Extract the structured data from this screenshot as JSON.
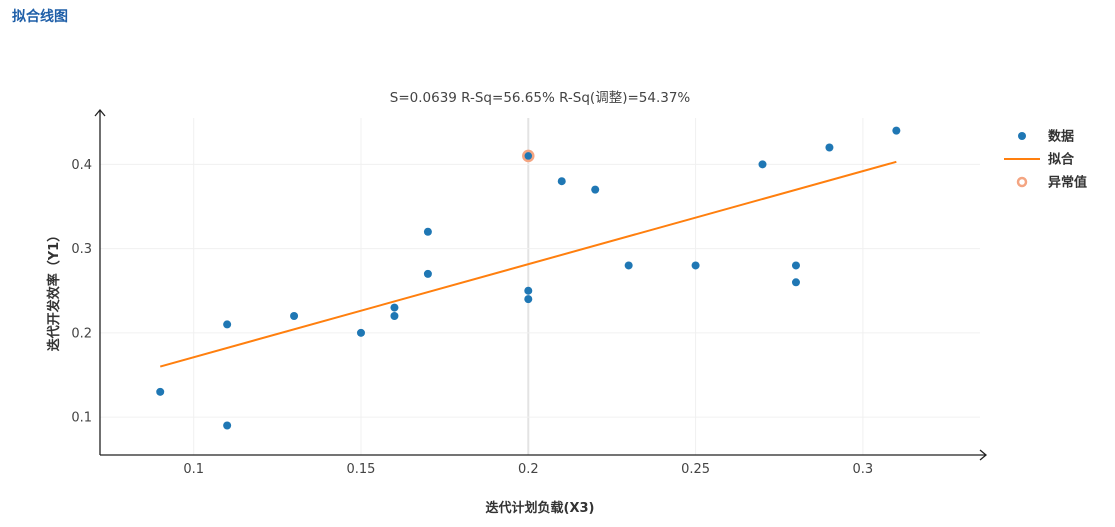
{
  "page": {
    "title": "拟合线图"
  },
  "chart_data": {
    "type": "scatter",
    "stats": "S=0.0639    R-Sq=56.65%    R-Sq(调整)=54.37%",
    "xlabel": "迭代计划负载(X3)",
    "ylabel": "迭代开发效率（Y1）",
    "xlim": [
      0.072,
      0.335
    ],
    "ylim": [
      0.055,
      0.455
    ],
    "x_ticks": [
      0.1,
      0.15,
      0.2,
      0.25,
      0.3
    ],
    "x_tick_labels": [
      "0.1",
      "0.15",
      "0.2",
      "0.25",
      "0.3"
    ],
    "y_ticks": [
      0.1,
      0.2,
      0.3,
      0.4
    ],
    "y_tick_labels": [
      "0.1",
      "0.2",
      "0.3",
      "0.4"
    ],
    "grid": true,
    "legend_position": "right",
    "series": [
      {
        "name": "数据",
        "type": "scatter",
        "color": "#1f77b4",
        "points": [
          [
            0.09,
            0.13
          ],
          [
            0.11,
            0.21
          ],
          [
            0.11,
            0.09
          ],
          [
            0.13,
            0.22
          ],
          [
            0.15,
            0.2
          ],
          [
            0.16,
            0.23
          ],
          [
            0.16,
            0.22
          ],
          [
            0.17,
            0.32
          ],
          [
            0.17,
            0.27
          ],
          [
            0.2,
            0.25
          ],
          [
            0.2,
            0.24
          ],
          [
            0.21,
            0.38
          ],
          [
            0.22,
            0.37
          ],
          [
            0.23,
            0.28
          ],
          [
            0.25,
            0.28
          ],
          [
            0.27,
            0.4
          ],
          [
            0.28,
            0.28
          ],
          [
            0.28,
            0.26
          ],
          [
            0.29,
            0.42
          ],
          [
            0.31,
            0.44
          ]
        ]
      },
      {
        "name": "拟合",
        "type": "line",
        "color": "#ff7f0e",
        "points": [
          [
            0.09,
            0.16
          ],
          [
            0.31,
            0.403
          ]
        ]
      },
      {
        "name": "异常值",
        "type": "outlier",
        "color": "#f4a582",
        "fill": "#1f77b4",
        "points": [
          [
            0.2,
            0.41
          ]
        ]
      }
    ]
  }
}
